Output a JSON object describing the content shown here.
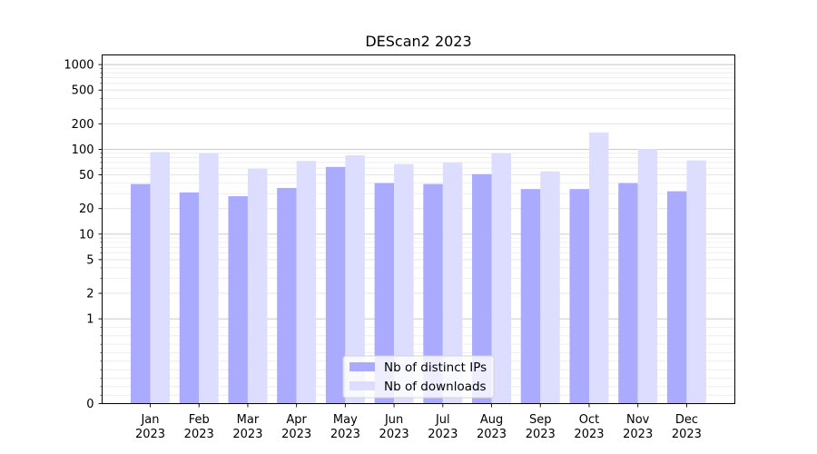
{
  "chart_data": {
    "type": "bar",
    "title": "DEScan2 2023",
    "xlabel": "",
    "ylabel": "",
    "y_scale": "symlog",
    "ylim": [
      0,
      1300
    ],
    "y_ticks": [
      0,
      1,
      2,
      5,
      10,
      20,
      50,
      100,
      200,
      500,
      1000
    ],
    "y_tick_labels": [
      "0",
      "1",
      "2",
      "5",
      "10",
      "20",
      "50",
      "100",
      "200",
      "500",
      "1000"
    ],
    "grid": true,
    "legend_position": "lower-center",
    "categories": [
      [
        "Jan",
        "2023"
      ],
      [
        "Feb",
        "2023"
      ],
      [
        "Mar",
        "2023"
      ],
      [
        "Apr",
        "2023"
      ],
      [
        "May",
        "2023"
      ],
      [
        "Jun",
        "2023"
      ],
      [
        "Jul",
        "2023"
      ],
      [
        "Aug",
        "2023"
      ],
      [
        "Sep",
        "2023"
      ],
      [
        "Oct",
        "2023"
      ],
      [
        "Nov",
        "2023"
      ],
      [
        "Dec",
        "2023"
      ]
    ],
    "series": [
      {
        "name": "Nb of distinct IPs",
        "color": "#aaaaff",
        "values": [
          39,
          31,
          28,
          35,
          62,
          40,
          39,
          51,
          34,
          34,
          40,
          32
        ]
      },
      {
        "name": "Nb of downloads",
        "color": "#ddddff",
        "values": [
          93,
          90,
          59,
          73,
          85,
          67,
          70,
          90,
          55,
          158,
          101,
          74
        ]
      }
    ]
  }
}
